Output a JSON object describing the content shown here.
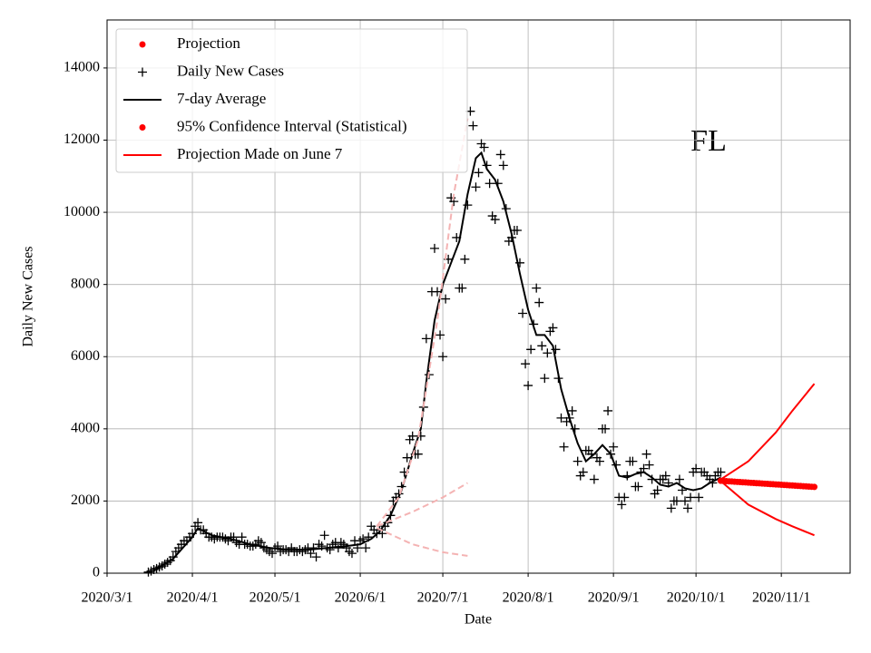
{
  "chart_data": {
    "type": "line",
    "annotation": "FL",
    "xlabel": "Date",
    "ylabel": "Daily New Cases",
    "xlim": [
      "2020/3/1",
      "2020/11/26"
    ],
    "ylim": [
      0,
      15330
    ],
    "xticks": [
      "2020/3/1",
      "2020/4/1",
      "2020/5/1",
      "2020/6/1",
      "2020/7/1",
      "2020/8/1",
      "2020/9/1",
      "2020/10/1",
      "2020/11/1"
    ],
    "yticks": [
      0,
      2000,
      4000,
      6000,
      8000,
      10000,
      12000,
      14000
    ],
    "grid": true,
    "legend_loc": "upper left",
    "legend": [
      {
        "label": "Projection",
        "marker": "dot",
        "color": "#ff0000"
      },
      {
        "label": "Daily New Cases",
        "marker": "plus",
        "color": "#000000"
      },
      {
        "label": "7-day Average",
        "marker": "line",
        "color": "#000000"
      },
      {
        "label": "95% Confidence Interval (Statistical)",
        "marker": "dot",
        "color": "#ff0000"
      },
      {
        "label": "Projection Made on June 7",
        "marker": "line",
        "color": "#ff0000"
      }
    ],
    "series": [
      {
        "style": "plus",
        "color": "#000000",
        "x": [
          "2020/3/16",
          "2020/3/17",
          "2020/3/18",
          "2020/3/19",
          "2020/3/20",
          "2020/3/21",
          "2020/3/22",
          "2020/3/23",
          "2020/3/24",
          "2020/3/25",
          "2020/3/26",
          "2020/3/27",
          "2020/3/28",
          "2020/3/29",
          "2020/3/30",
          "2020/3/31",
          "2020/4/1",
          "2020/4/2",
          "2020/4/3",
          "2020/4/4",
          "2020/4/5",
          "2020/4/6",
          "2020/4/7",
          "2020/4/8",
          "2020/4/9",
          "2020/4/10",
          "2020/4/11",
          "2020/4/12",
          "2020/4/13",
          "2020/4/14",
          "2020/4/15",
          "2020/4/16",
          "2020/4/17",
          "2020/4/18",
          "2020/4/19",
          "2020/4/20",
          "2020/4/21",
          "2020/4/22",
          "2020/4/23",
          "2020/4/24",
          "2020/4/25",
          "2020/4/26",
          "2020/4/27",
          "2020/4/28",
          "2020/4/29",
          "2020/4/30",
          "2020/5/1",
          "2020/5/2",
          "2020/5/3",
          "2020/5/4",
          "2020/5/5",
          "2020/5/6",
          "2020/5/7",
          "2020/5/8",
          "2020/5/9",
          "2020/5/10",
          "2020/5/11",
          "2020/5/12",
          "2020/5/13",
          "2020/5/14",
          "2020/5/15",
          "2020/5/16",
          "2020/5/17",
          "2020/5/18",
          "2020/5/19",
          "2020/5/20",
          "2020/5/21",
          "2020/5/22",
          "2020/5/23",
          "2020/5/24",
          "2020/5/25",
          "2020/5/26",
          "2020/5/27",
          "2020/5/28",
          "2020/5/29",
          "2020/5/30",
          "2020/5/31",
          "2020/6/1",
          "2020/6/2",
          "2020/6/3",
          "2020/6/4",
          "2020/6/5",
          "2020/6/6",
          "2020/6/7",
          "2020/6/8",
          "2020/6/9",
          "2020/6/10",
          "2020/6/11",
          "2020/6/12",
          "2020/6/13",
          "2020/6/14",
          "2020/6/15",
          "2020/6/16",
          "2020/6/17",
          "2020/6/18",
          "2020/6/19",
          "2020/6/20",
          "2020/6/21",
          "2020/6/22",
          "2020/6/23",
          "2020/6/24",
          "2020/6/25",
          "2020/6/26",
          "2020/6/27",
          "2020/6/28",
          "2020/6/29",
          "2020/6/30",
          "2020/7/1",
          "2020/7/2",
          "2020/7/3",
          "2020/7/4",
          "2020/7/5",
          "2020/7/6",
          "2020/7/7",
          "2020/7/8",
          "2020/7/9",
          "2020/7/10",
          "2020/7/11",
          "2020/7/12",
          "2020/7/13",
          "2020/7/14",
          "2020/7/15",
          "2020/7/16",
          "2020/7/17",
          "2020/7/18",
          "2020/7/19",
          "2020/7/20",
          "2020/7/21",
          "2020/7/22",
          "2020/7/23",
          "2020/7/24",
          "2020/7/25",
          "2020/7/26",
          "2020/7/27",
          "2020/7/28",
          "2020/7/29",
          "2020/7/30",
          "2020/7/31",
          "2020/8/1",
          "2020/8/2",
          "2020/8/3",
          "2020/8/4",
          "2020/8/5",
          "2020/8/6",
          "2020/8/7",
          "2020/8/8",
          "2020/8/9",
          "2020/8/10",
          "2020/8/11",
          "2020/8/12",
          "2020/8/13",
          "2020/8/14",
          "2020/8/15",
          "2020/8/16",
          "2020/8/17",
          "2020/8/18",
          "2020/8/19",
          "2020/8/20",
          "2020/8/21",
          "2020/8/22",
          "2020/8/23",
          "2020/8/24",
          "2020/8/25",
          "2020/8/26",
          "2020/8/27",
          "2020/8/28",
          "2020/8/29",
          "2020/8/30",
          "2020/8/31",
          "2020/9/1",
          "2020/9/2",
          "2020/9/3",
          "2020/9/4",
          "2020/9/5",
          "2020/9/6",
          "2020/9/7",
          "2020/9/8",
          "2020/9/9",
          "2020/9/10",
          "2020/9/11",
          "2020/9/12",
          "2020/9/13",
          "2020/9/14",
          "2020/9/15",
          "2020/9/16",
          "2020/9/17",
          "2020/9/18",
          "2020/9/19",
          "2020/9/20",
          "2020/9/21",
          "2020/9/22",
          "2020/9/23",
          "2020/9/24",
          "2020/9/25",
          "2020/9/26",
          "2020/9/27",
          "2020/9/28",
          "2020/9/29",
          "2020/9/30",
          "2020/10/1",
          "2020/10/2",
          "2020/10/3",
          "2020/10/4",
          "2020/10/5",
          "2020/10/6",
          "2020/10/7",
          "2020/10/8",
          "2020/10/9",
          "2020/10/10"
        ],
        "values": [
          30,
          60,
          100,
          130,
          170,
          200,
          250,
          300,
          350,
          450,
          600,
          700,
          800,
          900,
          900,
          1000,
          1100,
          1300,
          1400,
          1200,
          1200,
          1100,
          1000,
          1000,
          950,
          1000,
          1000,
          1000,
          950,
          900,
          1000,
          1000,
          850,
          800,
          1000,
          800,
          800,
          750,
          750,
          800,
          900,
          850,
          700,
          650,
          600,
          550,
          700,
          750,
          600,
          650,
          650,
          600,
          700,
          600,
          600,
          650,
          600,
          650,
          700,
          550,
          700,
          450,
          800,
          750,
          1050,
          700,
          650,
          800,
          850,
          700,
          850,
          800,
          700,
          600,
          550,
          900,
          700,
          900,
          950,
          700,
          1000,
          1300,
          1200,
          1100,
          1200,
          1100,
          1300,
          1400,
          1600,
          2000,
          2100,
          2200,
          2400,
          2800,
          3200,
          3700,
          3800,
          3300,
          3300,
          3800,
          4600,
          6500,
          5500,
          7800,
          9000,
          7800,
          6600,
          6000,
          7600,
          8700,
          10400,
          10300,
          9300,
          7900,
          7900,
          8700,
          10200,
          12800,
          12400,
          10700,
          11100,
          11900,
          11800,
          11300,
          10800,
          9900,
          9800,
          10800,
          11600,
          11300,
          10100,
          9200,
          9300,
          9500,
          9500,
          8600,
          7200,
          5800,
          5200,
          6200,
          6900,
          7900,
          7500,
          6300,
          5400,
          6100,
          6700,
          6800,
          6200,
          5400,
          4300,
          3500,
          4200,
          4300,
          4500,
          4000,
          3100,
          2700,
          2800,
          3400,
          3400,
          3300,
          2600,
          3200,
          3100,
          4000,
          4000,
          4500,
          3300,
          3500,
          3000,
          2100,
          1900,
          2100,
          2700,
          3100,
          3100,
          2400,
          2400,
          2800,
          2900,
          3300,
          3000,
          2600,
          2200,
          2300,
          2600,
          2600,
          2700,
          2500,
          1800,
          2000,
          2000,
          2600,
          2300,
          2000,
          1800,
          2100,
          2800,
          2900,
          2100,
          2800,
          2800,
          2700,
          2600,
          2500,
          2700,
          2800,
          2800
        ]
      },
      {
        "style": "line",
        "color": "#000000",
        "x": [
          "2020/3/18",
          "2020/3/25",
          "2020/4/1",
          "2020/4/3",
          "2020/4/8",
          "2020/4/15",
          "2020/4/22",
          "2020/4/29",
          "2020/5/6",
          "2020/5/13",
          "2020/5/20",
          "2020/5/27",
          "2020/6/1",
          "2020/6/5",
          "2020/6/8",
          "2020/6/12",
          "2020/6/16",
          "2020/6/20",
          "2020/6/23",
          "2020/6/25",
          "2020/6/28",
          "2020/7/1",
          "2020/7/4",
          "2020/7/7",
          "2020/7/10",
          "2020/7/13",
          "2020/7/15",
          "2020/7/17",
          "2020/7/20",
          "2020/7/23",
          "2020/7/26",
          "2020/7/29",
          "2020/8/1",
          "2020/8/4",
          "2020/8/7",
          "2020/8/10",
          "2020/8/13",
          "2020/8/16",
          "2020/8/19",
          "2020/8/22",
          "2020/8/25",
          "2020/8/28",
          "2020/8/31",
          "2020/9/3",
          "2020/9/6",
          "2020/9/9",
          "2020/9/12",
          "2020/9/15",
          "2020/9/18",
          "2020/9/21",
          "2020/9/24",
          "2020/9/27",
          "2020/9/30",
          "2020/10/3",
          "2020/10/6",
          "2020/10/10"
        ],
        "values": [
          80,
          400,
          1000,
          1250,
          1050,
          950,
          800,
          700,
          650,
          650,
          700,
          750,
          800,
          950,
          1150,
          1600,
          2300,
          3300,
          4000,
          5300,
          7000,
          8000,
          8600,
          9200,
          10500,
          11500,
          11650,
          11200,
          10900,
          10300,
          9400,
          8300,
          7300,
          6600,
          6600,
          6300,
          5100,
          4300,
          3600,
          3100,
          3300,
          3550,
          3300,
          2700,
          2650,
          2750,
          2800,
          2650,
          2450,
          2400,
          2500,
          2350,
          2300,
          2350,
          2500,
          2650
        ]
      },
      {
        "style": "dots",
        "color": "#ff0000",
        "x": [
          "2020/10/10",
          "2020/10/11",
          "2020/10/12",
          "2020/10/13",
          "2020/10/14",
          "2020/10/15",
          "2020/10/16",
          "2020/10/17",
          "2020/10/18",
          "2020/10/19",
          "2020/10/20",
          "2020/10/21",
          "2020/10/22",
          "2020/10/23",
          "2020/10/24",
          "2020/10/25",
          "2020/10/26",
          "2020/10/27",
          "2020/10/28",
          "2020/10/29",
          "2020/10/30",
          "2020/10/31",
          "2020/11/1",
          "2020/11/2",
          "2020/11/3",
          "2020/11/4",
          "2020/11/5",
          "2020/11/6",
          "2020/11/7",
          "2020/11/8",
          "2020/11/9",
          "2020/11/10",
          "2020/11/11",
          "2020/11/12",
          "2020/11/13"
        ],
        "values": [
          2560,
          2555,
          2550,
          2545,
          2540,
          2535,
          2530,
          2525,
          2520,
          2515,
          2510,
          2505,
          2500,
          2495,
          2490,
          2485,
          2480,
          2475,
          2470,
          2465,
          2460,
          2455,
          2450,
          2445,
          2440,
          2435,
          2430,
          2425,
          2420,
          2415,
          2410,
          2405,
          2400,
          2395,
          2390
        ]
      },
      {
        "style": "line",
        "color": "#ff0000",
        "x": [
          "2020/10/10",
          "2020/10/20",
          "2020/10/30",
          "2020/11/5",
          "2020/11/13"
        ],
        "values": [
          2600,
          3100,
          3900,
          4500,
          5250
        ]
      },
      {
        "style": "line",
        "color": "#ff0000",
        "x": [
          "2020/10/10",
          "2020/10/20",
          "2020/10/30",
          "2020/11/5",
          "2020/11/13"
        ],
        "values": [
          2550,
          1900,
          1500,
          1300,
          1050
        ]
      },
      {
        "style": "dashed",
        "color": "#f4b3b3",
        "x": [
          "2020/6/7",
          "2020/6/15",
          "2020/6/22",
          "2020/6/29",
          "2020/7/5",
          "2020/7/10"
        ],
        "values": [
          1300,
          2100,
          3700,
          7000,
          10500,
          12600
        ]
      },
      {
        "style": "dashed",
        "color": "#f4b3b3",
        "x": [
          "2020/6/7",
          "2020/6/20",
          "2020/7/1",
          "2020/7/10"
        ],
        "values": [
          1300,
          1700,
          2100,
          2500
        ]
      },
      {
        "style": "dashed",
        "color": "#f4b3b3",
        "x": [
          "2020/6/7",
          "2020/6/20",
          "2020/7/1",
          "2020/7/10"
        ],
        "values": [
          1250,
          800,
          580,
          480
        ]
      }
    ]
  }
}
